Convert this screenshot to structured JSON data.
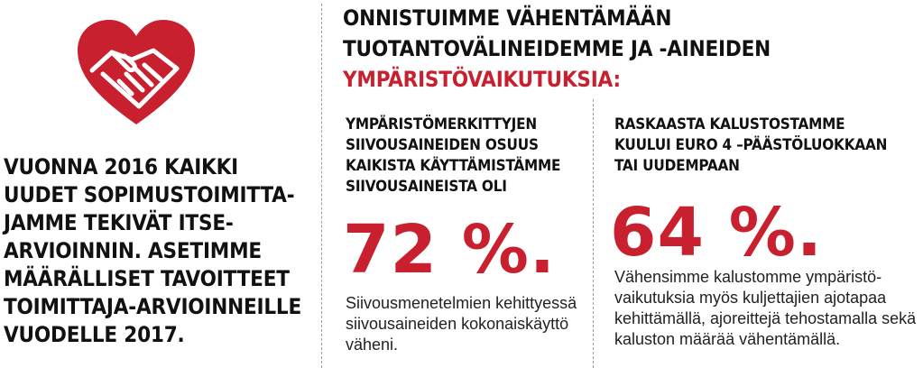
{
  "left": {
    "icon": "handshake-heart-icon",
    "text": "VUONNA 2016 KAIKKI UUDET SOPIMUSTOIMITTA-JAMME TEKIVÄT ITSE-ARVIOINNIN. ASETIMME MÄÄRÄLLISET TAVOITTEET TOIMITTAJA-ARVIOINNEILLE VUODELLE 2017."
  },
  "heading": {
    "part1": "ONNISTUIMME VÄHENTÄMÄÄN TUOTANTOVÄLINEIDEMME JA -AINEIDEN",
    "part2": "YMPÄRISTÖVAIKUTUKSIA:"
  },
  "stat_left": {
    "label": "YMPÄRISTÖMERKITTYJEN SIIVOUSAINEIDEN OSUUS KAIKISTA KÄYTTÄMISTÄMME SIIVOUSAINEISTA OLI",
    "value": "72 %.",
    "description": "Siivousmenetelmien kehittyessä siivousaineiden kokonaiskäyttö väheni."
  },
  "stat_right": {
    "label": "RASKAASTA KALUSTOSTAMME KUULUI EURO 4 –PÄÄSTÖLUOKKAAN TAI UUDEMPAAN",
    "value": "64 %.",
    "description": "Vähensimme kalustomme ympäristö-vaikutuksia myös kuljettajien ajotapaa kehittämällä, ajoreittejä tehostamalla sekä kaluston määrää vähentämällä."
  },
  "colors": {
    "accent": "#c8202f",
    "text": "#111111"
  }
}
